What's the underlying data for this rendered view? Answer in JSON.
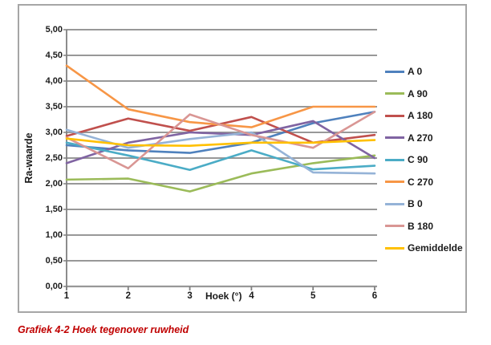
{
  "chart": {
    "y_axis_title": "Ra-waarde",
    "x_axis_title": "Hoek (°)",
    "caption": "Grafiek 4-2 Hoek tegenover ruwheid",
    "caption_color": "#C00000",
    "frame_border_color": "#A6A6A6",
    "gridline_color": "#989898",
    "axis_color": "#808080",
    "text_color": "#1a1a1a"
  },
  "chart_data": {
    "type": "line",
    "title": "",
    "xlabel": "Hoek (°)",
    "ylabel": "Ra-waarde",
    "x": [
      1,
      2,
      3,
      4,
      5,
      6
    ],
    "xtick_labels": [
      "1",
      "2",
      "3",
      "4",
      "5",
      "6"
    ],
    "ylim": [
      0,
      5
    ],
    "ytick_step": 0.5,
    "ytick_labels": [
      "0,00",
      "0,50",
      "1,00",
      "1,50",
      "2,00",
      "2,50",
      "3,00",
      "3,50",
      "4,00",
      "4,50",
      "5,00"
    ],
    "grid": true,
    "legend_position": "right",
    "series": [
      {
        "name": "A 0",
        "color": "#4F81BD",
        "values": [
          2.75,
          2.65,
          2.6,
          2.8,
          3.18,
          3.4
        ]
      },
      {
        "name": "A 90",
        "color": "#9BBB59",
        "values": [
          2.08,
          2.1,
          1.85,
          2.2,
          2.4,
          2.55
        ]
      },
      {
        "name": "A 180",
        "color": "#C0504D",
        "values": [
          2.93,
          3.27,
          3.03,
          3.3,
          2.8,
          2.95
        ]
      },
      {
        "name": "A 270",
        "color": "#8064A2",
        "values": [
          2.4,
          2.8,
          3.0,
          2.95,
          3.22,
          2.5
        ]
      },
      {
        "name": "C 90",
        "color": "#4BACC6",
        "values": [
          2.8,
          2.55,
          2.27,
          2.65,
          2.28,
          2.35
        ]
      },
      {
        "name": "C 270",
        "color": "#F79646",
        "values": [
          4.3,
          3.45,
          3.2,
          3.1,
          3.5,
          3.5
        ]
      },
      {
        "name": "B 0",
        "color": "#95B3D7",
        "values": [
          3.05,
          2.7,
          2.87,
          3.0,
          2.22,
          2.2
        ]
      },
      {
        "name": "B 180",
        "color": "#D99694",
        "values": [
          2.9,
          2.3,
          3.35,
          2.95,
          2.7,
          3.4
        ]
      },
      {
        "name": "Gemiddelde",
        "color": "#FFC000",
        "values": [
          2.88,
          2.75,
          2.74,
          2.8,
          2.8,
          2.85
        ]
      }
    ]
  }
}
